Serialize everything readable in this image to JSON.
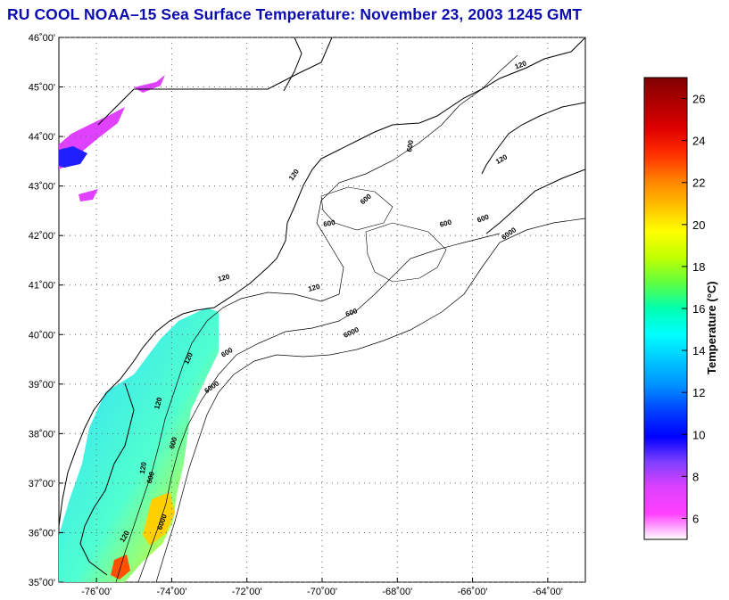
{
  "title": "RU COOL  NOAA–15  Sea Surface Temperature:  November 23, 2003 1245 GMT",
  "lat_ticks": [
    {
      "v": 46,
      "label": "46˚00'"
    },
    {
      "v": 45,
      "label": "45˚00'"
    },
    {
      "v": 44,
      "label": "44˚00'"
    },
    {
      "v": 43,
      "label": "43˚00'"
    },
    {
      "v": 42,
      "label": "42˚00'"
    },
    {
      "v": 41,
      "label": "41˚00'"
    },
    {
      "v": 40,
      "label": "40˚00'"
    },
    {
      "v": 39,
      "label": "39˚00'"
    },
    {
      "v": 38,
      "label": "38˚00'"
    },
    {
      "v": 37,
      "label": "37˚00'"
    },
    {
      "v": 36,
      "label": "36˚00'"
    },
    {
      "v": 35,
      "label": "35˚00'"
    }
  ],
  "lon_ticks": [
    {
      "v": -76,
      "label": "-76˚00'"
    },
    {
      "v": -74,
      "label": "-74˚00'"
    },
    {
      "v": -72,
      "label": "-72˚00'"
    },
    {
      "v": -70,
      "label": "-70˚00'"
    },
    {
      "v": -68,
      "label": "-68˚00'"
    },
    {
      "v": -66,
      "label": "-66˚00'"
    },
    {
      "v": -64,
      "label": "-64˚00'"
    }
  ],
  "extent": {
    "lon": [
      -77,
      -63
    ],
    "lat": [
      35,
      46
    ]
  },
  "contour_labels": [
    {
      "text": "120",
      "lon": -64.7,
      "lat": 45.4,
      "rot": -20
    },
    {
      "text": "600",
      "lon": -67.6,
      "lat": 43.8,
      "rot": -80
    },
    {
      "text": "120",
      "lon": -65.2,
      "lat": 43.5,
      "rot": -30
    },
    {
      "text": "120",
      "lon": -70.7,
      "lat": 43.2,
      "rot": -55
    },
    {
      "text": "600",
      "lon": -68.8,
      "lat": 42.7,
      "rot": -40
    },
    {
      "text": "600",
      "lon": -69.8,
      "lat": 42.2,
      "rot": -10
    },
    {
      "text": "600",
      "lon": -66.7,
      "lat": 42.2,
      "rot": -15
    },
    {
      "text": "600",
      "lon": -65.7,
      "lat": 42.3,
      "rot": -20
    },
    {
      "text": "6000",
      "lon": -65.0,
      "lat": 42.0,
      "rot": -35
    },
    {
      "text": "120",
      "lon": -70.2,
      "lat": 40.9,
      "rot": -15
    },
    {
      "text": "120",
      "lon": -72.6,
      "lat": 41.1,
      "rot": -15
    },
    {
      "text": "600",
      "lon": -69.2,
      "lat": 40.4,
      "rot": -20
    },
    {
      "text": "6000",
      "lon": -69.2,
      "lat": 40.0,
      "rot": -25
    },
    {
      "text": "120",
      "lon": -73.5,
      "lat": 39.5,
      "rot": -65
    },
    {
      "text": "600",
      "lon": -72.5,
      "lat": 39.6,
      "rot": -30
    },
    {
      "text": "6000",
      "lon": -72.9,
      "lat": 38.9,
      "rot": -35
    },
    {
      "text": "120",
      "lon": -74.3,
      "lat": 38.6,
      "rot": -75
    },
    {
      "text": "600",
      "lon": -73.9,
      "lat": 37.8,
      "rot": -75
    },
    {
      "text": "120",
      "lon": -74.7,
      "lat": 37.3,
      "rot": -80
    },
    {
      "text": "600",
      "lon": -74.5,
      "lat": 37.1,
      "rot": -75
    },
    {
      "text": "6000",
      "lon": -74.2,
      "lat": 36.2,
      "rot": -70
    },
    {
      "text": "120",
      "lon": -75.2,
      "lat": 35.9,
      "rot": -60
    }
  ],
  "colorbar": {
    "label": "Temperature (°C)",
    "range": [
      5,
      27
    ],
    "ticks": [
      6,
      8,
      10,
      12,
      14,
      16,
      18,
      20,
      22,
      24,
      26
    ],
    "colors": [
      "#ffffff",
      "#ff40ff",
      "#e040ff",
      "#8040ff",
      "#0000ff",
      "#0040ff",
      "#0090ff",
      "#00c8ff",
      "#00ffff",
      "#00ffb0",
      "#60ff40",
      "#c0ff00",
      "#ffff00",
      "#ffc000",
      "#ff8000",
      "#ff3000",
      "#e00000",
      "#b00000",
      "#800000"
    ]
  },
  "colors": {
    "title": "#0b0bb0",
    "land_outline": "#000000",
    "sst_warm": "#ffd400",
    "sst_cool": "#30d8ff"
  }
}
